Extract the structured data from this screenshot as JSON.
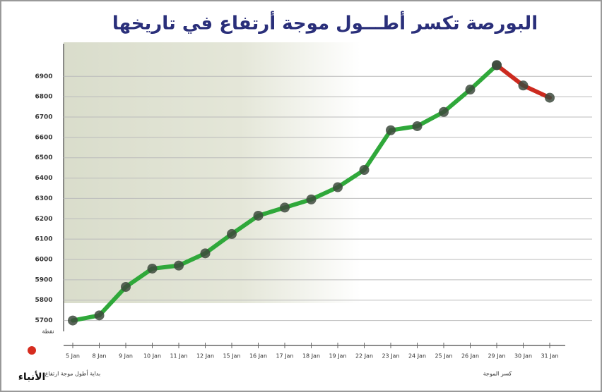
{
  "chart_data": {
    "type": "line",
    "title": "البورصة تكسر أطـــول موجة أرتفاع في تاريخها",
    "categories": [
      "5 Jan",
      "8 Jan",
      "9 Jan",
      "10 Jan",
      "11 Jan",
      "12 Jan",
      "15 Jan",
      "16 Jan",
      "17 Jan",
      "18 Jan",
      "19 Jan",
      "22 Jan",
      "23 Jan",
      "24 Jan",
      "25 Jan",
      "26 Jan",
      "29 Jan",
      "30 Jan",
      "31 Jan"
    ],
    "series": [
      {
        "color": "#2fa83a",
        "values": [
          5700,
          5725,
          5865,
          5955,
          5970,
          6030,
          6125,
          6215,
          6255,
          6295,
          6355,
          6440,
          6635,
          6655,
          6725,
          6835,
          6955,
          null,
          null
        ]
      },
      {
        "color": "#cc2a1f",
        "values": [
          null,
          null,
          null,
          null,
          null,
          null,
          null,
          null,
          null,
          null,
          null,
          null,
          null,
          null,
          null,
          null,
          6955,
          6855,
          6795
        ]
      }
    ],
    "ylim": [
      5650,
      7050
    ],
    "yticks": [
      5700,
      5800,
      5900,
      6000,
      6100,
      6200,
      6300,
      6400,
      6500,
      6600,
      6700,
      6800,
      6900
    ],
    "grid": true,
    "annotations": [
      "نقطة",
      "بداية أطول موجة ارتفاع",
      "كسر الموجة",
      "الأنباء"
    ]
  }
}
